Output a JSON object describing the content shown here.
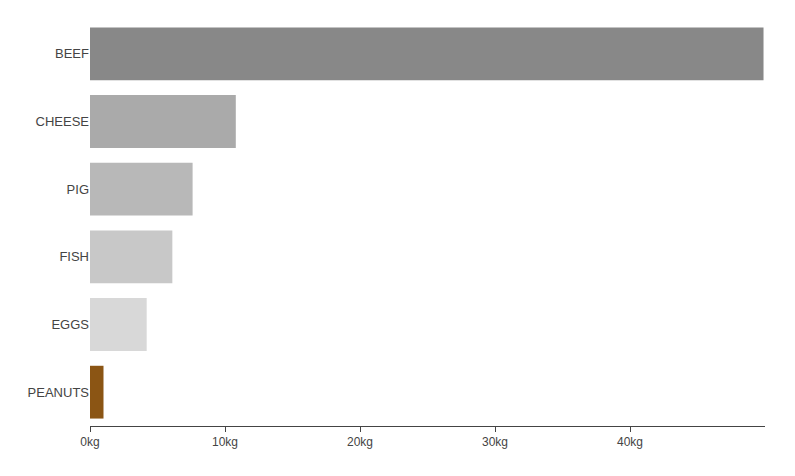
{
  "chart_data": {
    "type": "bar",
    "orientation": "horizontal",
    "categories": [
      "BEEF",
      "CHEESE",
      "PIG",
      "FISH",
      "EGGS",
      "PEANUTS"
    ],
    "values": [
      49.89,
      10.8,
      7.6,
      6.1,
      4.2,
      1.0
    ],
    "colors": [
      "#888888",
      "#aaaaaa",
      "#b8b8b8",
      "#c8c8c8",
      "#d8d8d8",
      "#8B5514"
    ],
    "xlim": [
      0,
      50
    ],
    "xticks": [
      {
        "value": 0,
        "label": "0kg"
      },
      {
        "value": 10,
        "label": "10kg"
      },
      {
        "value": 20,
        "label": "20kg"
      },
      {
        "value": 30,
        "label": "30kg"
      },
      {
        "value": 40,
        "label": "40kg"
      }
    ],
    "grid": false
  }
}
